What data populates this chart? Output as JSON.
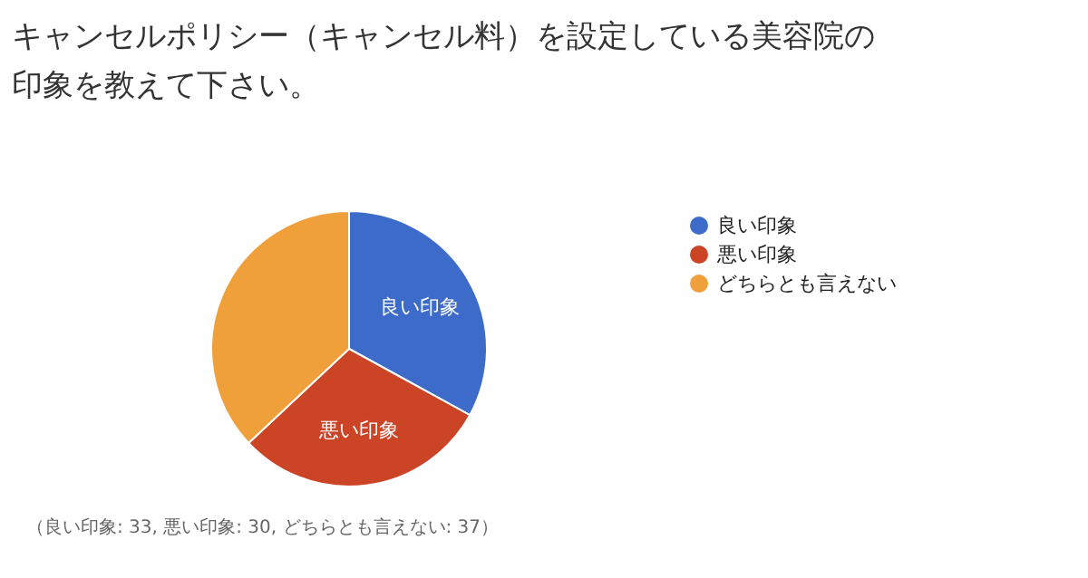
{
  "chart_data": {
    "type": "pie",
    "title": "キャンセルポリシー（キャンセル料）を設定している美容院の印象を教えて下さい。",
    "categories": [
      "良い印象",
      "悪い印象",
      "どちらとも言えない"
    ],
    "values": [
      33,
      30,
      37
    ],
    "colors": [
      "#3d6bc9",
      "#cc4426",
      "#f0a03a"
    ],
    "legend": "right",
    "annotations": [
      {
        "text": "良い印象",
        "x": "良い印象"
      },
      {
        "text": "悪い印象",
        "x": "悪い印象"
      },
      "（良い印象: 33, 悪い印象: 30, どちらとも言えない: 37）"
    ]
  }
}
